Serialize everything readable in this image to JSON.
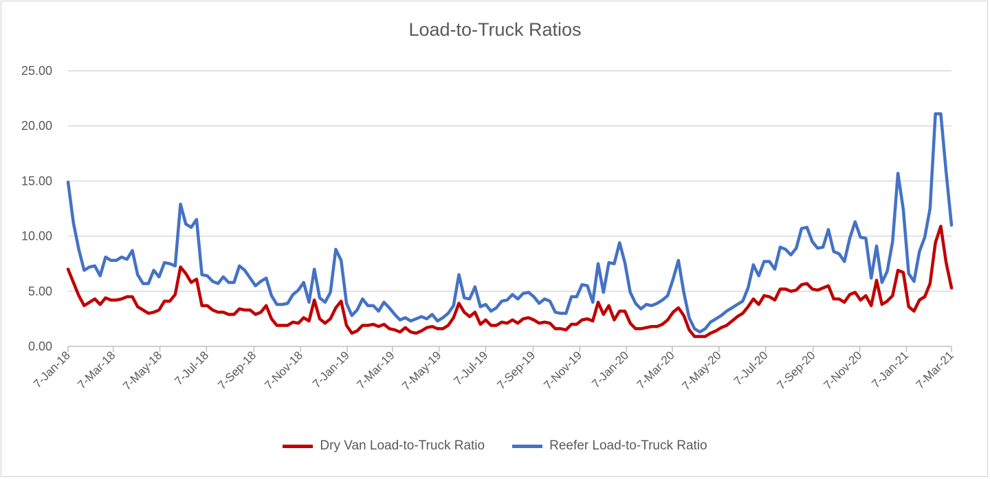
{
  "chart_data": {
    "type": "line",
    "title": "Load-to-Truck Ratios",
    "x_start": "7-Jan-18",
    "x_interval": "weekly",
    "x_tick_labels": [
      "7-Jan-18",
      "7-Mar-18",
      "7-May-18",
      "7-Jul-18",
      "7-Sep-18",
      "7-Nov-18",
      "7-Jan-19",
      "7-Mar-19",
      "7-May-19",
      "7-Jul-19",
      "7-Sep-19",
      "7-Nov-19",
      "7-Jan-20",
      "7-Mar-20",
      "7-May-20",
      "7-Jul-20",
      "7-Sep-20",
      "7-Nov-20",
      "7-Jan-21",
      "7-Mar-21"
    ],
    "y_tick_labels": [
      "0.00",
      "5.00",
      "10.00",
      "15.00",
      "20.00",
      "25.00"
    ],
    "ylim": [
      0,
      25
    ],
    "grid": "horizontal",
    "legend_position": "bottom",
    "series": [
      {
        "name": "Dry Van Load-to-Truck Ratio",
        "color": "#c00000",
        "values": [
          7.0,
          5.8,
          4.6,
          3.7,
          4.0,
          4.3,
          3.8,
          4.4,
          4.2,
          4.2,
          4.3,
          4.5,
          4.5,
          3.6,
          3.3,
          3.0,
          3.1,
          3.3,
          4.1,
          4.1,
          4.7,
          7.2,
          6.6,
          5.8,
          6.1,
          3.7,
          3.7,
          3.3,
          3.1,
          3.1,
          2.9,
          2.9,
          3.4,
          3.3,
          3.3,
          2.9,
          3.1,
          3.7,
          2.5,
          1.9,
          1.9,
          1.9,
          2.2,
          2.1,
          2.6,
          2.3,
          4.2,
          2.5,
          2.1,
          2.5,
          3.5,
          4.1,
          1.9,
          1.2,
          1.4,
          1.9,
          1.9,
          2.0,
          1.8,
          2.0,
          1.6,
          1.5,
          1.3,
          1.7,
          1.3,
          1.2,
          1.4,
          1.7,
          1.8,
          1.6,
          1.6,
          1.9,
          2.6,
          3.9,
          3.1,
          2.7,
          3.1,
          2.0,
          2.4,
          1.9,
          1.9,
          2.2,
          2.1,
          2.4,
          2.1,
          2.5,
          2.6,
          2.4,
          2.1,
          2.2,
          2.1,
          1.6,
          1.6,
          1.5,
          2.0,
          2.0,
          2.4,
          2.5,
          2.3,
          4.0,
          2.9,
          3.7,
          2.4,
          3.2,
          3.2,
          2.1,
          1.6,
          1.6,
          1.7,
          1.8,
          1.8,
          2.0,
          2.4,
          3.1,
          3.5,
          2.8,
          1.5,
          0.9,
          0.9,
          0.9,
          1.2,
          1.4,
          1.7,
          1.9,
          2.3,
          2.7,
          3.0,
          3.6,
          4.3,
          3.8,
          4.6,
          4.5,
          4.2,
          5.2,
          5.2,
          5.0,
          5.1,
          5.6,
          5.7,
          5.2,
          5.1,
          5.3,
          5.5,
          4.3,
          4.3,
          4.0,
          4.7,
          4.9,
          4.2,
          4.6,
          3.7,
          6.0,
          3.8,
          4.1,
          4.6,
          6.9,
          6.7,
          3.6,
          3.2,
          4.2,
          4.5,
          5.7,
          9.4,
          10.9,
          7.6,
          5.3
        ]
      },
      {
        "name": "Reefer Load-to-Truck Ratio",
        "color": "#4472c4",
        "values": [
          14.9,
          11.2,
          8.8,
          6.9,
          7.2,
          7.3,
          6.4,
          8.1,
          7.8,
          7.8,
          8.1,
          7.9,
          8.7,
          6.5,
          5.7,
          5.7,
          6.9,
          6.3,
          7.6,
          7.5,
          7.3,
          12.9,
          11.1,
          10.8,
          11.5,
          6.5,
          6.4,
          5.9,
          5.7,
          6.3,
          5.8,
          5.8,
          7.3,
          6.9,
          6.2,
          5.5,
          5.9,
          6.2,
          4.6,
          3.8,
          3.8,
          3.9,
          4.7,
          5.1,
          5.8,
          4.0,
          7.0,
          4.4,
          4.0,
          4.9,
          8.8,
          7.8,
          3.9,
          2.8,
          3.3,
          4.3,
          3.7,
          3.7,
          3.2,
          4.0,
          3.5,
          2.9,
          2.4,
          2.6,
          2.3,
          2.5,
          2.7,
          2.5,
          2.9,
          2.3,
          2.6,
          3.0,
          3.7,
          6.5,
          4.4,
          4.3,
          5.4,
          3.6,
          3.8,
          3.2,
          3.5,
          4.1,
          4.2,
          4.7,
          4.3,
          4.8,
          4.9,
          4.5,
          3.9,
          4.3,
          4.1,
          3.1,
          3.0,
          3.0,
          4.5,
          4.5,
          5.6,
          5.5,
          4.0,
          7.5,
          4.9,
          7.6,
          7.5,
          9.4,
          7.6,
          4.9,
          3.9,
          3.4,
          3.8,
          3.7,
          3.9,
          4.2,
          4.6,
          6.1,
          7.8,
          4.9,
          2.6,
          1.6,
          1.3,
          1.6,
          2.2,
          2.5,
          2.8,
          3.2,
          3.5,
          3.8,
          4.1,
          5.3,
          7.4,
          6.4,
          7.7,
          7.7,
          7.0,
          9.0,
          8.8,
          8.3,
          8.9,
          10.7,
          10.8,
          9.5,
          8.9,
          9.0,
          10.6,
          8.6,
          8.4,
          7.7,
          9.8,
          11.3,
          9.9,
          9.8,
          6.2,
          9.1,
          5.8,
          6.8,
          9.5,
          15.7,
          12.4,
          6.6,
          5.9,
          8.6,
          9.9,
          12.5,
          21.1,
          21.1,
          15.8,
          11.0
        ]
      }
    ]
  }
}
